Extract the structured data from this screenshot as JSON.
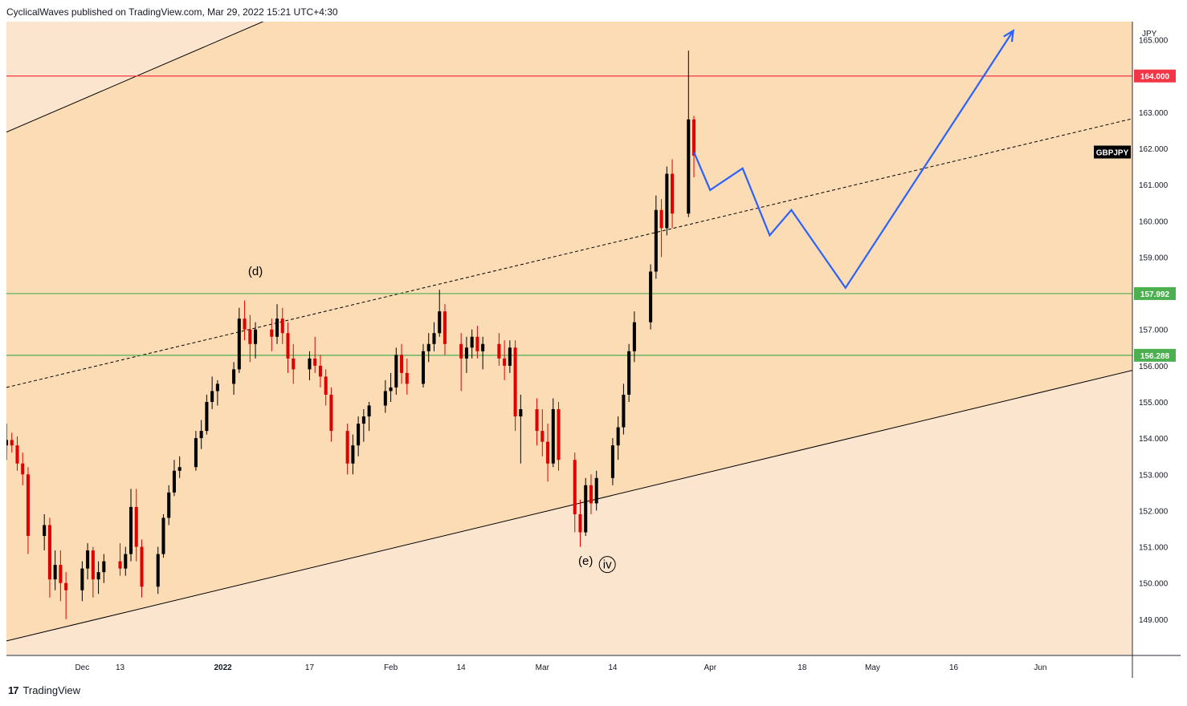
{
  "header": {
    "publish_text": "CyclicalWaves published on TradingView.com, Mar 29, 2022 15:21 UTC+4:30"
  },
  "footer": {
    "brand": "TradingView",
    "logo_glyph": "17"
  },
  "chart_data": {
    "type": "candlestick",
    "symbol": "GBPJPY",
    "currency": "JPY",
    "ylim": [
      148.0,
      165.5
    ],
    "y_ticks": [
      "149.000",
      "150.000",
      "151.000",
      "152.000",
      "153.000",
      "154.000",
      "155.000",
      "156.000",
      "157.000",
      "158.000",
      "159.000",
      "160.000",
      "161.000",
      "162.000",
      "163.000",
      "164.000",
      "165.000"
    ],
    "x_ticks": [
      "Dec",
      "13",
      "2022",
      "17",
      "Feb",
      "14",
      "Mar",
      "14",
      "Apr",
      "18",
      "May",
      "16",
      "Jun"
    ],
    "x_range": [
      "2021-11-22",
      "2022-06-18"
    ],
    "colors": {
      "bull": "#000000",
      "bear": "#e00000",
      "channel_fill": "#fbdcb4",
      "outer_fill": "#fbe5cf",
      "red_line": "#f23645",
      "green_line": "#4caf50",
      "projection": "#2962ff"
    },
    "horizontal_levels": [
      {
        "label": "164.000",
        "value": 164.0,
        "color": "#f23645"
      },
      {
        "label": "157.992",
        "value": 157.992,
        "color": "#4caf50"
      },
      {
        "label": "156.288",
        "value": 156.288,
        "color": "#4caf50"
      }
    ],
    "channel": {
      "upper": [
        {
          "date": "2021-11-22",
          "price": 162.45
        },
        {
          "date": "2022-02-10",
          "price": 167.6
        }
      ],
      "middle": [
        {
          "date": "2021-11-22",
          "price": 155.4
        },
        {
          "date": "2022-06-16",
          "price": 162.75
        }
      ],
      "lower": [
        {
          "date": "2021-11-22",
          "price": 148.4
        },
        {
          "date": "2022-06-16",
          "price": 155.8
        }
      ]
    },
    "wave_labels": [
      {
        "text": "(d)",
        "date": "2022-01-07",
        "price": 158.5
      },
      {
        "text": "(e)",
        "date": "2022-03-09",
        "price": 150.5
      },
      {
        "text": "iv",
        "date": "2022-03-13",
        "price": 150.4,
        "circled": true
      }
    ],
    "projection_path": [
      {
        "date": "2022-03-29",
        "price": 161.9
      },
      {
        "date": "2022-04-01",
        "price": 160.85
      },
      {
        "date": "2022-04-07",
        "price": 161.45
      },
      {
        "date": "2022-04-12",
        "price": 159.6
      },
      {
        "date": "2022-04-16",
        "price": 160.3
      },
      {
        "date": "2022-04-26",
        "price": 158.15
      },
      {
        "date": "2022-05-27",
        "price": 165.25
      }
    ],
    "ohlc_daily": [
      [
        "2021-11-22",
        153.8,
        154.4,
        153.4,
        153.95
      ],
      [
        "2021-11-23",
        153.95,
        154.15,
        153.6,
        153.8
      ],
      [
        "2021-11-24",
        153.8,
        154.05,
        153.1,
        153.3
      ],
      [
        "2021-11-25",
        153.3,
        153.6,
        152.7,
        153.0
      ],
      [
        "2021-11-26",
        153.0,
        153.2,
        150.8,
        151.3
      ],
      [
        "2021-11-29",
        151.3,
        151.9,
        150.9,
        151.6
      ],
      [
        "2021-11-30",
        151.6,
        151.8,
        149.6,
        150.1
      ],
      [
        "2021-12-01",
        150.1,
        150.9,
        149.8,
        150.5
      ],
      [
        "2021-12-02",
        150.5,
        150.9,
        149.5,
        150.0
      ],
      [
        "2021-12-03",
        150.0,
        150.3,
        149.0,
        149.8
      ],
      [
        "2021-12-06",
        149.8,
        150.6,
        149.5,
        150.4
      ],
      [
        "2021-12-07",
        150.4,
        151.1,
        150.1,
        150.9
      ],
      [
        "2021-12-08",
        150.9,
        151.0,
        149.6,
        150.1
      ],
      [
        "2021-12-09",
        150.1,
        150.6,
        149.7,
        150.3
      ],
      [
        "2021-12-10",
        150.3,
        150.8,
        150.0,
        150.6
      ],
      [
        "2021-12-13",
        150.6,
        151.1,
        150.2,
        150.4
      ],
      [
        "2021-12-14",
        150.4,
        151.0,
        150.2,
        150.8
      ],
      [
        "2021-12-15",
        150.8,
        152.6,
        150.6,
        152.1
      ],
      [
        "2021-12-16",
        152.1,
        152.6,
        150.6,
        151.0
      ],
      [
        "2021-12-17",
        151.0,
        151.2,
        149.6,
        149.9
      ],
      [
        "2021-12-20",
        149.9,
        151.0,
        149.7,
        150.8
      ],
      [
        "2021-12-21",
        150.8,
        151.9,
        150.7,
        151.8
      ],
      [
        "2021-12-22",
        151.8,
        152.7,
        151.6,
        152.5
      ],
      [
        "2021-12-23",
        152.5,
        153.4,
        152.4,
        153.1
      ],
      [
        "2021-12-24",
        153.1,
        153.5,
        152.9,
        153.2
      ],
      [
        "2021-12-27",
        153.2,
        154.2,
        153.1,
        154.0
      ],
      [
        "2021-12-28",
        154.0,
        154.5,
        153.7,
        154.2
      ],
      [
        "2021-12-29",
        154.2,
        155.2,
        154.1,
        155.0
      ],
      [
        "2021-12-30",
        155.0,
        155.7,
        154.8,
        155.3
      ],
      [
        "2021-12-31",
        155.3,
        155.6,
        154.9,
        155.5
      ],
      [
        "2022-01-03",
        155.5,
        156.1,
        155.2,
        155.9
      ],
      [
        "2022-01-04",
        155.9,
        157.6,
        155.8,
        157.3
      ],
      [
        "2022-01-05",
        157.3,
        157.8,
        156.7,
        157.0
      ],
      [
        "2022-01-06",
        157.0,
        157.4,
        156.1,
        156.6
      ],
      [
        "2022-01-07",
        156.6,
        157.2,
        156.2,
        157.0
      ],
      [
        "2022-01-10",
        157.0,
        157.3,
        156.4,
        156.8
      ],
      [
        "2022-01-11",
        156.8,
        157.7,
        156.6,
        157.3
      ],
      [
        "2022-01-12",
        157.3,
        157.6,
        156.6,
        156.9
      ],
      [
        "2022-01-13",
        156.9,
        157.2,
        155.8,
        156.2
      ],
      [
        "2022-01-14",
        156.2,
        156.6,
        155.5,
        155.9
      ],
      [
        "2022-01-17",
        155.9,
        156.4,
        155.6,
        156.2
      ],
      [
        "2022-01-18",
        156.2,
        156.8,
        155.8,
        156.0
      ],
      [
        "2022-01-19",
        156.0,
        156.3,
        155.4,
        155.7
      ],
      [
        "2022-01-20",
        155.7,
        155.9,
        154.9,
        155.2
      ],
      [
        "2022-01-21",
        155.2,
        155.4,
        153.9,
        154.2
      ],
      [
        "2022-01-24",
        154.2,
        154.4,
        153.0,
        153.3
      ],
      [
        "2022-01-25",
        153.3,
        154.1,
        153.0,
        153.8
      ],
      [
        "2022-01-26",
        153.8,
        154.6,
        153.5,
        154.4
      ],
      [
        "2022-01-27",
        154.4,
        154.8,
        153.9,
        154.6
      ],
      [
        "2022-01-28",
        154.6,
        155.0,
        154.2,
        154.9
      ],
      [
        "2022-01-31",
        154.9,
        155.6,
        154.7,
        155.3
      ],
      [
        "2022-02-01",
        155.3,
        155.8,
        155.0,
        155.4
      ],
      [
        "2022-02-02",
        155.4,
        156.5,
        155.2,
        156.3
      ],
      [
        "2022-02-03",
        156.3,
        156.6,
        155.5,
        155.8
      ],
      [
        "2022-02-04",
        155.8,
        156.2,
        155.2,
        155.5
      ],
      [
        "2022-02-07",
        155.5,
        156.6,
        155.4,
        156.4
      ],
      [
        "2022-02-08",
        156.4,
        156.9,
        156.1,
        156.6
      ],
      [
        "2022-02-09",
        156.6,
        157.2,
        156.4,
        156.9
      ],
      [
        "2022-02-10",
        156.9,
        158.1,
        156.8,
        157.5
      ],
      [
        "2022-02-11",
        157.5,
        157.7,
        156.3,
        156.6
      ],
      [
        "2022-02-14",
        156.6,
        156.9,
        155.3,
        156.2
      ],
      [
        "2022-02-15",
        156.2,
        156.8,
        155.8,
        156.5
      ],
      [
        "2022-02-16",
        156.5,
        157.0,
        156.2,
        156.8
      ],
      [
        "2022-02-17",
        156.8,
        157.1,
        156.2,
        156.4
      ],
      [
        "2022-02-18",
        156.4,
        156.8,
        155.9,
        156.6
      ],
      [
        "2022-02-21",
        156.6,
        156.9,
        156.0,
        156.2
      ],
      [
        "2022-02-22",
        156.2,
        156.7,
        155.6,
        156.0
      ],
      [
        "2022-02-23",
        156.0,
        156.7,
        155.8,
        156.5
      ],
      [
        "2022-02-24",
        156.5,
        156.7,
        154.2,
        154.6
      ],
      [
        "2022-02-25",
        154.6,
        155.2,
        153.3,
        154.8
      ],
      [
        "2022-02-28",
        154.8,
        155.1,
        153.8,
        154.2
      ],
      [
        "2022-03-01",
        154.2,
        154.8,
        153.5,
        153.9
      ],
      [
        "2022-03-02",
        153.9,
        154.4,
        152.8,
        153.3
      ],
      [
        "2022-03-03",
        153.3,
        155.1,
        153.2,
        154.8
      ],
      [
        "2022-03-04",
        154.8,
        155.0,
        153.1,
        153.4
      ],
      [
        "2022-03-07",
        153.4,
        153.6,
        151.4,
        151.9
      ],
      [
        "2022-03-08",
        151.9,
        152.3,
        151.0,
        151.4
      ],
      [
        "2022-03-09",
        151.4,
        152.9,
        151.3,
        152.7
      ],
      [
        "2022-03-10",
        152.7,
        153.0,
        151.9,
        152.2
      ],
      [
        "2022-03-11",
        152.2,
        153.1,
        152.0,
        152.9
      ],
      [
        "2022-03-14",
        152.9,
        154.0,
        152.7,
        153.8
      ],
      [
        "2022-03-15",
        153.8,
        154.6,
        153.4,
        154.3
      ],
      [
        "2022-03-16",
        154.3,
        155.5,
        154.1,
        155.2
      ],
      [
        "2022-03-17",
        155.2,
        156.6,
        155.0,
        156.4
      ],
      [
        "2022-03-18",
        156.4,
        157.5,
        156.1,
        157.2
      ],
      [
        "2022-03-21",
        157.2,
        158.8,
        157.0,
        158.6
      ],
      [
        "2022-03-22",
        158.6,
        160.7,
        158.4,
        160.3
      ],
      [
        "2022-03-23",
        160.3,
        160.6,
        159.0,
        159.8
      ],
      [
        "2022-03-24",
        159.8,
        161.5,
        159.6,
        161.3
      ],
      [
        "2022-03-25",
        161.3,
        161.7,
        159.8,
        160.2
      ],
      [
        "2022-03-28",
        160.2,
        164.7,
        160.1,
        162.8
      ],
      [
        "2022-03-29",
        162.8,
        162.9,
        161.2,
        161.8
      ]
    ]
  }
}
